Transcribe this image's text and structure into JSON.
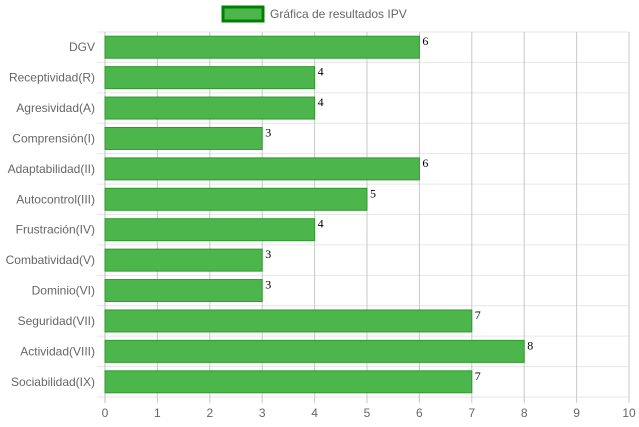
{
  "chart_data": {
    "type": "bar",
    "orientation": "horizontal",
    "categories": [
      "DGV",
      "Receptividad(R)",
      "Agresividad(A)",
      "Comprensión(I)",
      "Adaptabilidad(II)",
      "Autocontrol(III)",
      "Frustración(IV)",
      "Combatividad(V)",
      "Dominio(VI)",
      "Seguridad(VII)",
      "Actividad(VIII)",
      "Sociabilidad(IX)"
    ],
    "series": [
      {
        "name": "Gráfica de resultados IPV",
        "values": [
          6,
          4,
          4,
          3,
          6,
          5,
          4,
          3,
          3,
          7,
          8,
          7
        ]
      }
    ],
    "xlim": [
      0,
      10
    ],
    "x_ticks": [
      "0",
      "1",
      "2",
      "3",
      "4",
      "5",
      "6",
      "7",
      "8",
      "9",
      "10"
    ],
    "grid": true,
    "legend_position": "top",
    "data_labels": true,
    "colors": {
      "bar_fill": "#4cb64c",
      "bar_border": "#2f9a2f",
      "legend_fill": "#4cb64c",
      "legend_border": "#008000",
      "grid": "#d9d9d9",
      "axis_text": "#666666"
    }
  }
}
